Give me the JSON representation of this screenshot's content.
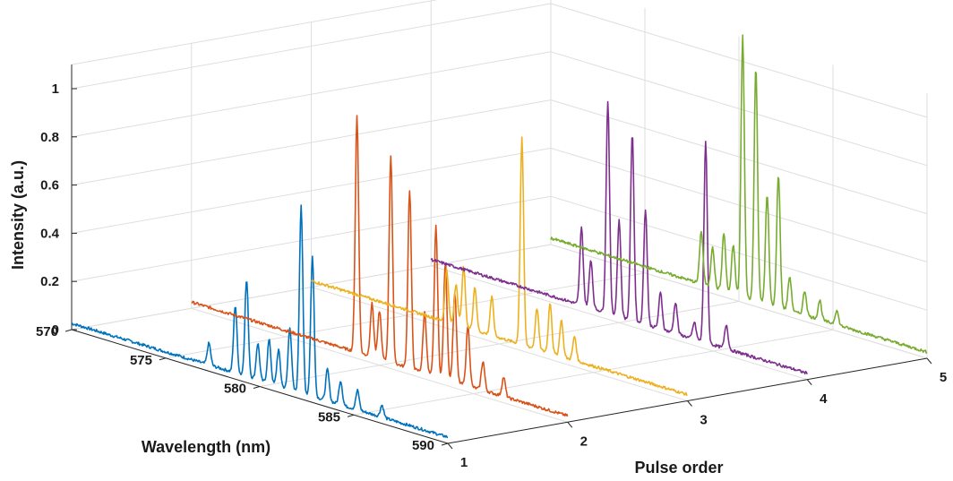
{
  "chart_data": {
    "type": "line",
    "projection": "3d-waterfall",
    "xlabel": "Wavelength (nm)",
    "ylabel": "Pulse order",
    "zlabel": "Intensity (a.u.)",
    "xlim": [
      570,
      590
    ],
    "ylim": [
      1,
      5
    ],
    "zlim": [
      0,
      1.1
    ],
    "x_ticks": [
      "570",
      "575",
      "580",
      "585",
      "590"
    ],
    "y_ticks": [
      "1",
      "2",
      "3",
      "4",
      "5"
    ],
    "z_ticks": [
      "0",
      "0.2",
      "0.4",
      "0.6",
      "0.8",
      "1"
    ],
    "grid": true,
    "series": [
      {
        "pulse": 1,
        "color": "#0072BD",
        "peaks": [
          {
            "x": 577.3,
            "y": 0.09
          },
          {
            "x": 578.7,
            "y": 0.28
          },
          {
            "x": 579.3,
            "y": 0.4
          },
          {
            "x": 579.9,
            "y": 0.15
          },
          {
            "x": 580.5,
            "y": 0.18
          },
          {
            "x": 581.0,
            "y": 0.15
          },
          {
            "x": 581.6,
            "y": 0.26
          },
          {
            "x": 582.2,
            "y": 0.78
          },
          {
            "x": 582.8,
            "y": 0.58
          },
          {
            "x": 583.6,
            "y": 0.13
          },
          {
            "x": 584.3,
            "y": 0.1
          },
          {
            "x": 585.2,
            "y": 0.08
          },
          {
            "x": 586.5,
            "y": 0.05
          }
        ]
      },
      {
        "pulse": 2,
        "color": "#D95319",
        "peaks": [
          {
            "x": 578.8,
            "y": 0.98
          },
          {
            "x": 579.6,
            "y": 0.22
          },
          {
            "x": 580.0,
            "y": 0.2
          },
          {
            "x": 580.6,
            "y": 0.86
          },
          {
            "x": 581.6,
            "y": 0.74
          },
          {
            "x": 582.4,
            "y": 0.25
          },
          {
            "x": 583.0,
            "y": 0.62
          },
          {
            "x": 583.5,
            "y": 0.48
          },
          {
            "x": 584.0,
            "y": 0.37
          },
          {
            "x": 584.7,
            "y": 0.25
          },
          {
            "x": 585.5,
            "y": 0.12
          },
          {
            "x": 586.6,
            "y": 0.08
          }
        ]
      },
      {
        "pulse": 3,
        "color": "#EDB120",
        "peaks": [
          {
            "x": 577.2,
            "y": 0.22
          },
          {
            "x": 577.7,
            "y": 0.17
          },
          {
            "x": 578.1,
            "y": 0.25
          },
          {
            "x": 578.7,
            "y": 0.18
          },
          {
            "x": 579.6,
            "y": 0.16
          },
          {
            "x": 581.2,
            "y": 0.86
          },
          {
            "x": 582.0,
            "y": 0.17
          },
          {
            "x": 582.7,
            "y": 0.21
          },
          {
            "x": 583.3,
            "y": 0.15
          },
          {
            "x": 584.0,
            "y": 0.1
          }
        ]
      },
      {
        "pulse": 4,
        "color": "#7E2F8E",
        "peaks": [
          {
            "x": 578.0,
            "y": 0.32
          },
          {
            "x": 578.5,
            "y": 0.2
          },
          {
            "x": 579.4,
            "y": 0.88
          },
          {
            "x": 580.0,
            "y": 0.4
          },
          {
            "x": 580.7,
            "y": 0.78
          },
          {
            "x": 581.4,
            "y": 0.48
          },
          {
            "x": 582.2,
            "y": 0.15
          },
          {
            "x": 583.0,
            "y": 0.13
          },
          {
            "x": 584.0,
            "y": 0.07
          },
          {
            "x": 584.6,
            "y": 0.83
          },
          {
            "x": 585.7,
            "y": 0.1
          }
        ]
      },
      {
        "pulse": 5,
        "color": "#77AC30",
        "peaks": [
          {
            "x": 578.0,
            "y": 0.22
          },
          {
            "x": 578.6,
            "y": 0.17
          },
          {
            "x": 579.2,
            "y": 0.24
          },
          {
            "x": 579.7,
            "y": 0.2
          },
          {
            "x": 580.2,
            "y": 1.08
          },
          {
            "x": 580.9,
            "y": 0.97
          },
          {
            "x": 581.5,
            "y": 0.45
          },
          {
            "x": 582.1,
            "y": 0.55
          },
          {
            "x": 582.7,
            "y": 0.14
          },
          {
            "x": 583.5,
            "y": 0.1
          },
          {
            "x": 584.3,
            "y": 0.08
          },
          {
            "x": 585.2,
            "y": 0.06
          }
        ]
      }
    ]
  }
}
